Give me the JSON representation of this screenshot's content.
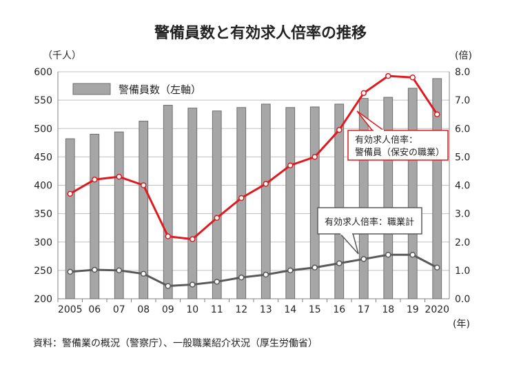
{
  "chart_data": {
    "type": "bar",
    "title": "警備員数と有効求人倍率の推移",
    "y_left_unit": "（千人）",
    "y_right_unit": "(倍)",
    "x_unit": "(年)",
    "categories": [
      "2005",
      "06",
      "07",
      "08",
      "09",
      "10",
      "11",
      "12",
      "13",
      "14",
      "15",
      "16",
      "17",
      "18",
      "19",
      "2020"
    ],
    "ylim_left": [
      200,
      600
    ],
    "yticks_left": [
      "200",
      "250",
      "300",
      "350",
      "400",
      "450",
      "500",
      "550",
      "600"
    ],
    "ylim_right": [
      0,
      8
    ],
    "yticks_right": [
      "0.0",
      "1.0",
      "2.0",
      "3.0",
      "4.0",
      "5.0",
      "6.0",
      "7.0",
      "8.0"
    ],
    "grid": true,
    "legend": {
      "position": "top-left",
      "label": "警備員数（左軸）"
    },
    "series": [
      {
        "name": "警備員数（左軸）",
        "kind": "bar",
        "axis": "left",
        "color": "#a6a6a6",
        "values": [
          482,
          490,
          494,
          513,
          541,
          536,
          531,
          537,
          543,
          537,
          538,
          543,
          553,
          555,
          571,
          588
        ]
      },
      {
        "kind": "line",
        "axis": "right",
        "color": "#e0191e",
        "values": [
          3.7,
          4.2,
          4.3,
          4.0,
          2.2,
          2.1,
          2.85,
          3.55,
          4.05,
          4.7,
          5.0,
          5.95,
          7.25,
          7.85,
          7.8,
          6.5
        ]
      },
      {
        "kind": "line",
        "axis": "right",
        "color": "#595959",
        "values": [
          0.95,
          1.02,
          1.0,
          0.88,
          0.45,
          0.5,
          0.6,
          0.75,
          0.85,
          1.0,
          1.1,
          1.25,
          1.4,
          1.55,
          1.55,
          1.1
        ]
      }
    ],
    "annotations": [
      {
        "label_line1": "有効求人倍率：",
        "label_line2": "警備員（保安の職業）",
        "color": "#e0191e"
      },
      {
        "label": "有効求人倍率：職業計",
        "color": "#595959"
      }
    ],
    "source": "資料：警備業の概況（警察庁）、一般職業紹介状況（厚生労働省）"
  }
}
